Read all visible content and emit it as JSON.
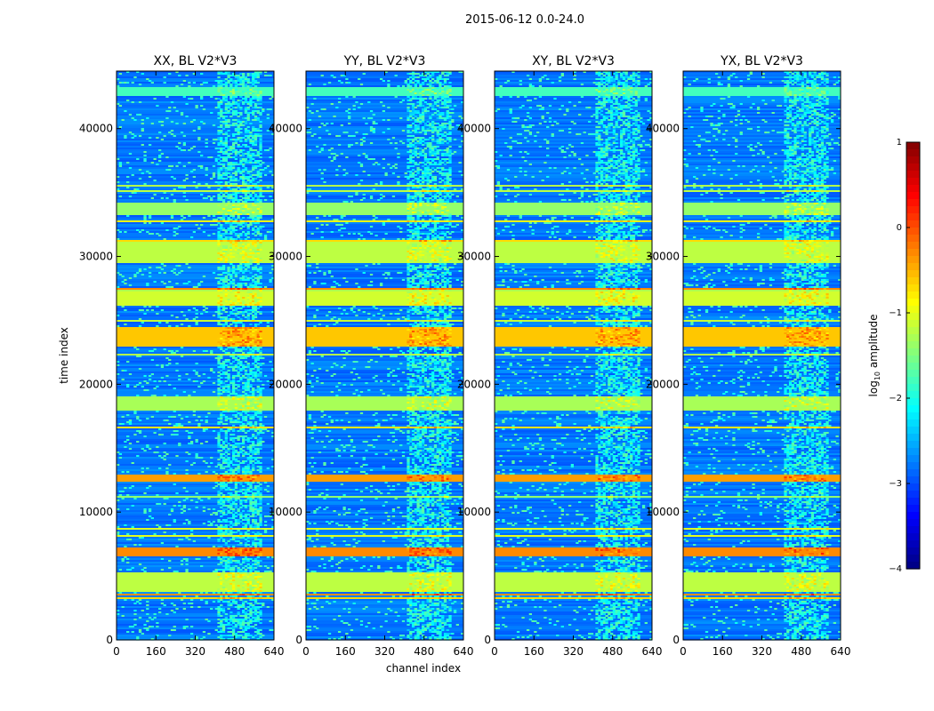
{
  "figure": {
    "suptitle": "2015-06-12 0.0-24.0",
    "xlabel": "channel index",
    "ylabel": "time index",
    "colorbar_label": "log10 amplitude",
    "colorbar_label_base": "log",
    "colorbar_label_sub": "10",
    "colorbar_label_rest": " amplitude",
    "colormap": "jet"
  },
  "chart_data": [
    {
      "type": "heatmap",
      "title": "XX, BL V2*V3",
      "xlim": [
        0,
        640
      ],
      "ylim": [
        0,
        44500
      ],
      "xticks": [
        0,
        160,
        320,
        480,
        640
      ],
      "yticks": [
        0,
        10000,
        20000,
        30000,
        40000
      ],
      "show_yticklabels": true,
      "colorbar": {
        "min": -4,
        "max": 1,
        "ticks": [
          1,
          0,
          -1,
          -2,
          -3,
          -4
        ],
        "tick_labels": [
          "1",
          "0",
          "−1",
          "−2",
          "−3",
          "−4"
        ]
      }
    },
    {
      "type": "heatmap",
      "title": "YY, BL V2*V3",
      "xlim": [
        0,
        640
      ],
      "ylim": [
        0,
        44500
      ],
      "xticks": [
        0,
        160,
        320,
        480,
        640
      ],
      "yticks": [
        0,
        10000,
        20000,
        30000,
        40000
      ],
      "show_yticklabels": true
    },
    {
      "type": "heatmap",
      "title": "XY, BL V2*V3",
      "xlim": [
        0,
        640
      ],
      "ylim": [
        0,
        44500
      ],
      "xticks": [
        0,
        160,
        320,
        480,
        640
      ],
      "yticks": [
        0,
        10000,
        20000,
        30000,
        40000
      ],
      "show_yticklabels": true
    },
    {
      "type": "heatmap",
      "title": "YX, BL V2*V3",
      "xlim": [
        0,
        640
      ],
      "ylim": [
        0,
        44500
      ],
      "xticks": [
        0,
        160,
        320,
        480,
        640
      ],
      "yticks": [
        0,
        10000,
        20000,
        30000,
        40000
      ],
      "show_yticklabels": true
    }
  ],
  "heatmap_features": {
    "background_level": -2.8,
    "rfi_channel_band": [
      410,
      590
    ],
    "broad_bands": [
      {
        "t0": 3700,
        "t1": 5300,
        "level": -1.2
      },
      {
        "t0": 6600,
        "t1": 7200,
        "level": -0.3
      },
      {
        "t0": 12400,
        "t1": 12900,
        "level": -0.4
      },
      {
        "t0": 18000,
        "t1": 19000,
        "level": -1.3
      },
      {
        "t0": 23000,
        "t1": 24500,
        "level": -0.6
      },
      {
        "t0": 26200,
        "t1": 27200,
        "level": -1.1
      },
      {
        "t0": 29500,
        "t1": 31200,
        "level": -1.2
      },
      {
        "t0": 33200,
        "t1": 34200,
        "level": -1.4
      },
      {
        "t0": 42500,
        "t1": 43200,
        "level": -1.8
      }
    ]
  }
}
